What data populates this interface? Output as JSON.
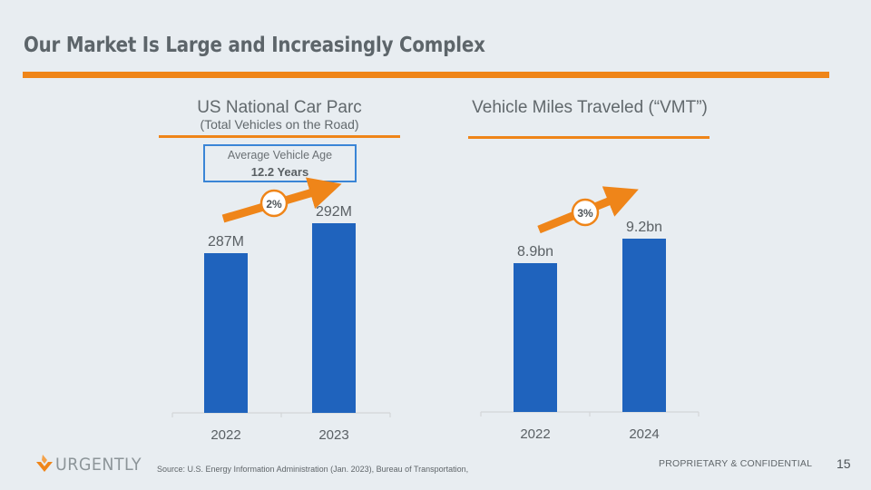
{
  "header": {
    "title": "Our Market Is Large and Increasingly Complex"
  },
  "colors": {
    "accent_orange": "#ef8519",
    "bar_blue": "#1f63bd",
    "box_blue": "#3a85d6",
    "background": "#e8edf1"
  },
  "left_panel": {
    "title": "US National Car Parc",
    "subtitle": "(Total Vehicles on the Road)",
    "callout": {
      "label": "Average Vehicle Age",
      "value": "12.2 Years"
    },
    "growth_badge": "2%"
  },
  "right_panel": {
    "title": "Vehicle Miles Traveled (“VMT”)",
    "growth_badge": "3%"
  },
  "chart_data": [
    {
      "type": "bar",
      "title": "US National Car Parc",
      "subtitle": "(Total Vehicles on the Road)",
      "categories": [
        "2022",
        "2023"
      ],
      "values": [
        287,
        292
      ],
      "value_labels": [
        "287M",
        "292M"
      ],
      "unit": "million vehicles",
      "xlabel": "",
      "ylabel": "",
      "grid": false,
      "growth_annotation": "2%"
    },
    {
      "type": "bar",
      "title": "Vehicle Miles Traveled (“VMT”)",
      "categories": [
        "2022",
        "2024"
      ],
      "values": [
        8.9,
        9.2
      ],
      "value_labels": [
        "8.9bn",
        "9.2bn"
      ],
      "unit": "billion miles",
      "xlabel": "",
      "ylabel": "",
      "grid": false,
      "growth_annotation": "3%"
    }
  ],
  "footer": {
    "logo_text": "URGENTLY",
    "source": "Source: U.S. Energy Information Administration (Jan. 2023), Bureau of Transportation,",
    "confidential": "PROPRIETARY & CONFIDENTIAL",
    "page_number": "15"
  }
}
